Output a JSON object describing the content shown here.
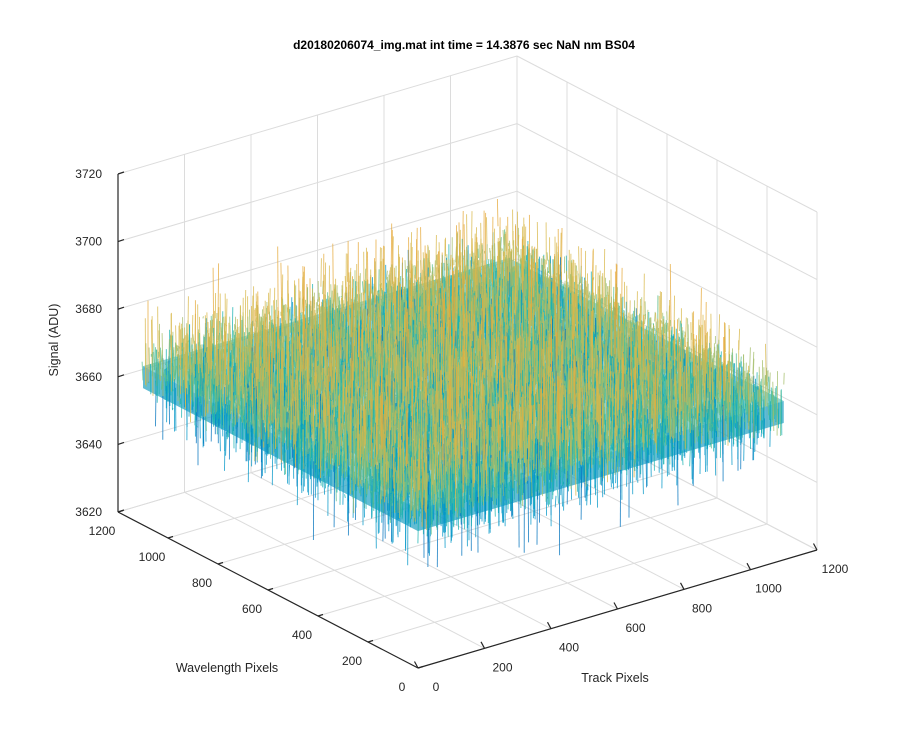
{
  "chart_data": {
    "type": "surface",
    "title": "d20180206074_img.mat int time = 14.3876 sec  NaN nm BS04",
    "xlabel": "Track Pixels",
    "ylabel": "Wavelength Pixels",
    "zlabel": "Signal (ADU)",
    "xlim": [
      0,
      1200
    ],
    "ylim": [
      0,
      1200
    ],
    "zlim": [
      3620,
      3720
    ],
    "x_ticks": [
      "0",
      "200",
      "400",
      "600",
      "800",
      "1000",
      "1200"
    ],
    "y_ticks": [
      "0",
      "200",
      "400",
      "600",
      "800",
      "1000",
      "1200"
    ],
    "z_ticks": [
      "3620",
      "3640",
      "3660",
      "3680",
      "3700",
      "3720"
    ],
    "data_extent": {
      "x": [
        0,
        1100
      ],
      "y": [
        0,
        1100
      ]
    },
    "signal_mean": 3667,
    "signal_spread": 12,
    "colormap": "parula",
    "colors": [
      "#0072bd",
      "#0096c7",
      "#19b2b0",
      "#5cbf8f",
      "#a5be6a",
      "#d9b84a",
      "#e6a93a"
    ],
    "grid": true,
    "view": "3d"
  }
}
